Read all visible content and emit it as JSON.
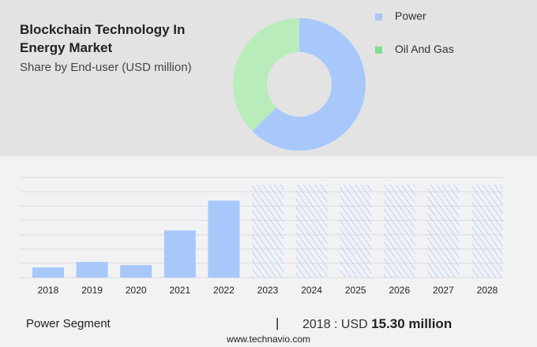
{
  "title": "Blockchain Technology In Energy Market",
  "subtitle": "Share by End-user (USD million)",
  "colors": {
    "power": "#a8c8fc",
    "oil_and_gas": "#b8ecbb",
    "oil_and_gas_legend": "#7ee094",
    "hatch": "#a8c8fc"
  },
  "chart_data": [
    {
      "type": "pie",
      "variant": "donut",
      "legend_position": "right",
      "slices": [
        {
          "name": "Power",
          "share": 62.5
        },
        {
          "name": "Oil And Gas",
          "share": 37.5
        }
      ]
    },
    {
      "type": "bar",
      "grid": true,
      "categories": [
        "2018",
        "2019",
        "2020",
        "2021",
        "2022",
        "2023",
        "2024",
        "2025",
        "2026",
        "2027",
        "2028"
      ],
      "values": [
        15.3,
        23.5,
        18.8,
        70.6,
        115.3,
        null,
        null,
        null,
        null,
        null,
        null
      ],
      "forecast_categories": [
        "2023",
        "2024",
        "2025",
        "2026",
        "2027",
        "2028"
      ],
      "ylim": [
        0,
        150
      ]
    }
  ],
  "footer": {
    "segment": "Power Segment",
    "separator": "|",
    "year_label": "2018 : USD ",
    "value": "15.30 million",
    "site": "www.technavio.com"
  }
}
